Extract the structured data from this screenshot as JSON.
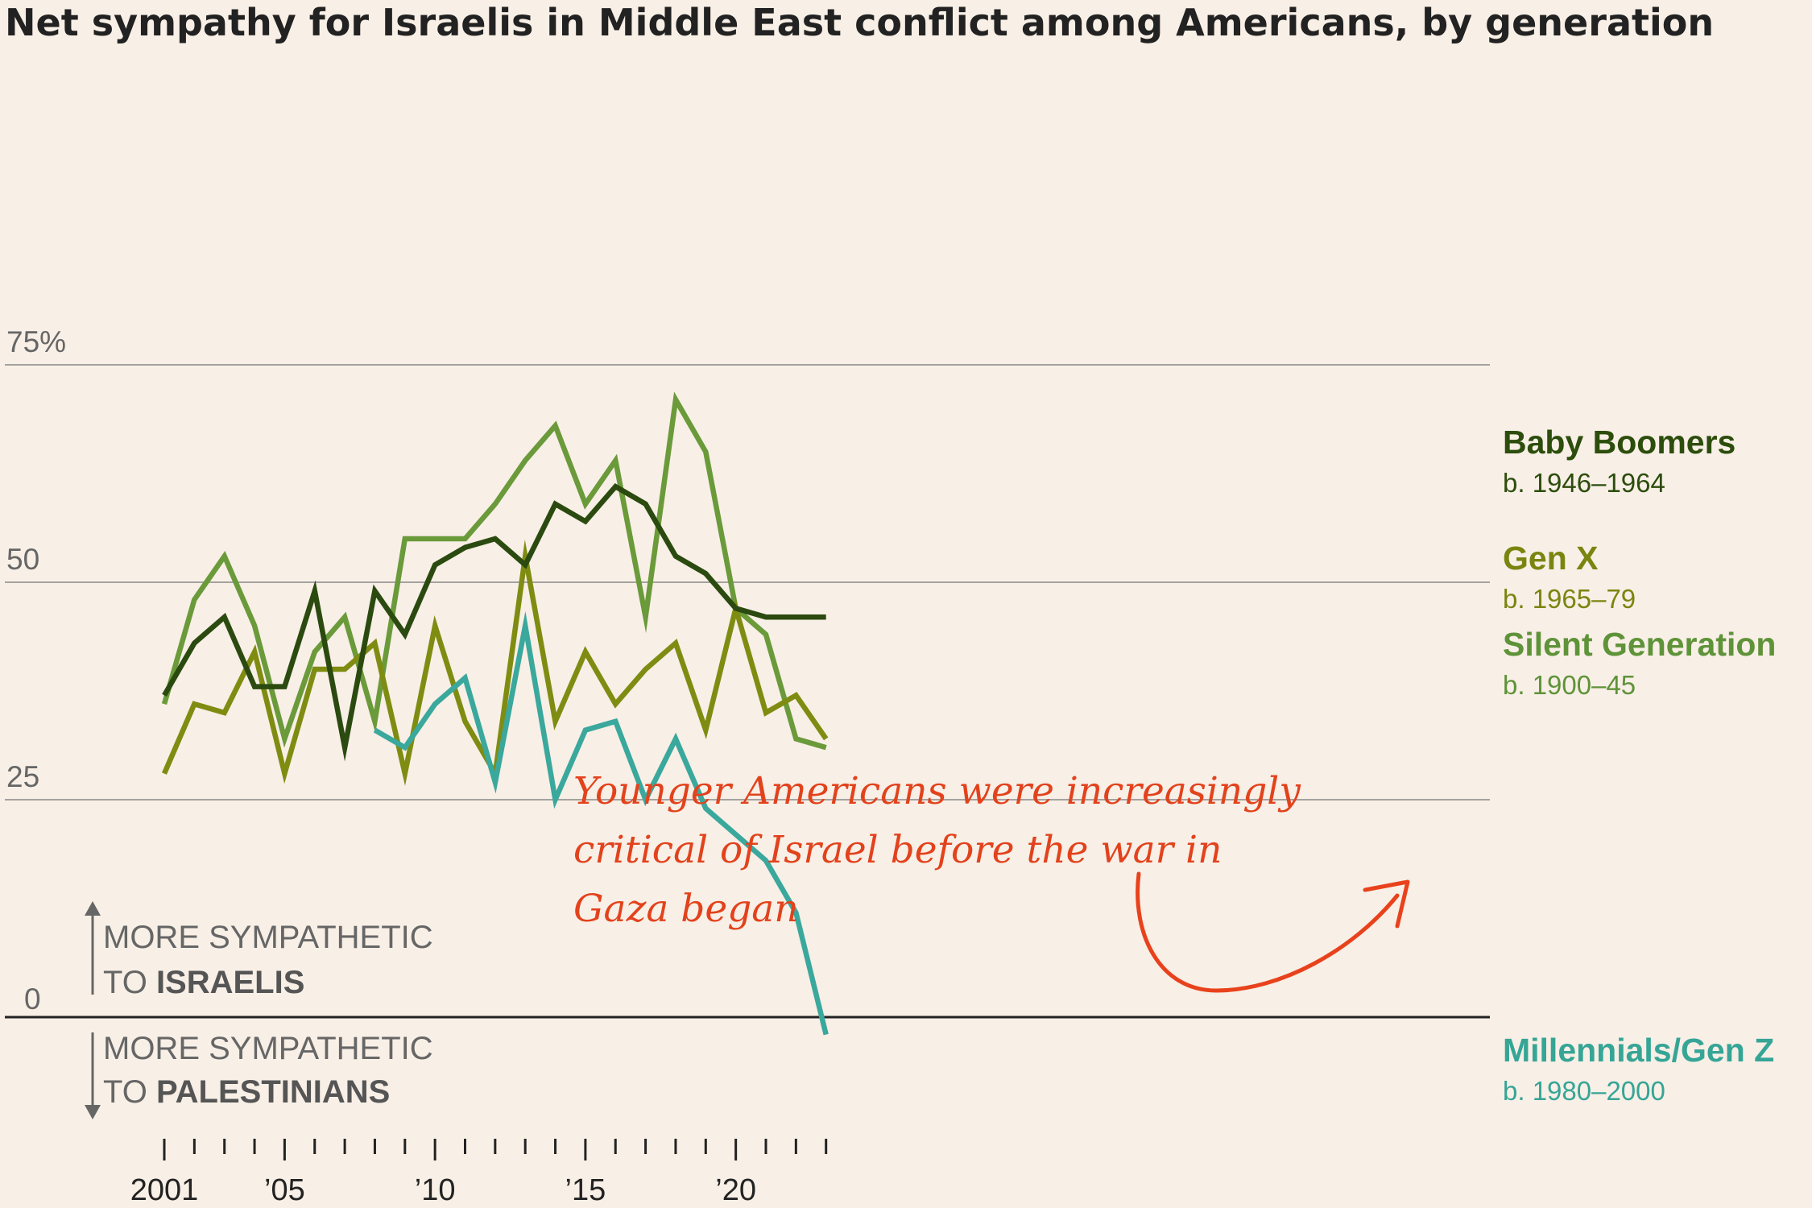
{
  "chart_data": {
    "type": "line",
    "title": "Net sympathy for Israelis in Middle East conflict among Americans, by generation",
    "ylim": [
      -3,
      75
    ],
    "xlim": [
      2001,
      2023
    ],
    "y_ticks": [
      {
        "value": 75,
        "label": "75%"
      },
      {
        "value": 50,
        "label": "50"
      },
      {
        "value": 25,
        "label": "25"
      },
      {
        "value": 0,
        "label": "0"
      }
    ],
    "x_ticks": [
      {
        "value": 2001,
        "label": "2001"
      },
      {
        "value": 2005,
        "label": "’05"
      },
      {
        "value": 2010,
        "label": "’10"
      },
      {
        "value": 2015,
        "label": "’15"
      },
      {
        "value": 2020,
        "label": "’20"
      }
    ],
    "series": [
      {
        "name": "Silent Generation",
        "birth": "b. 1900–45",
        "color": "#6a9a3a",
        "label_color": "#5f9339",
        "x": [
          2001,
          2002,
          2003,
          2004,
          2005,
          2006,
          2007,
          2008,
          2009,
          2010,
          2011,
          2012,
          2013,
          2014,
          2015,
          2016,
          2017,
          2018,
          2019,
          2020,
          2021,
          2022,
          2023
        ],
        "values": [
          36,
          48,
          53,
          45,
          32,
          42,
          46,
          34,
          55,
          55,
          55,
          59,
          64,
          68,
          59,
          64,
          46,
          71,
          65,
          47,
          44,
          32,
          31
        ]
      },
      {
        "name": "Gen X",
        "birth": "b. 1965–79",
        "color": "#7f8c12",
        "label_color": "#7a8510",
        "x": [
          2001,
          2002,
          2003,
          2004,
          2005,
          2006,
          2007,
          2008,
          2009,
          2010,
          2011,
          2012,
          2013,
          2014,
          2015,
          2016,
          2017,
          2018,
          2019,
          2020,
          2021,
          2022,
          2023
        ],
        "values": [
          28,
          36,
          35,
          42,
          28,
          40,
          40,
          43,
          28,
          45,
          34,
          28,
          53,
          34,
          42,
          36,
          40,
          43,
          33,
          47,
          35,
          37,
          32
        ]
      },
      {
        "name": "Millennials/Gen Z",
        "birth": "b. 1980–2000",
        "color": "#3aa89c",
        "label_color": "#35a596",
        "x": [
          2008,
          2009,
          2010,
          2011,
          2012,
          2013,
          2014,
          2015,
          2016,
          2017,
          2018,
          2019,
          2020,
          2021,
          2022,
          2023
        ],
        "values": [
          33,
          31,
          36,
          39,
          27,
          45,
          25,
          33,
          34,
          25,
          32,
          24,
          21,
          18,
          12,
          -2
        ]
      },
      {
        "name": "Baby Boomers",
        "birth": "b. 1946–1964",
        "color": "#2b4a10",
        "label_color": "#2c4d0c",
        "x": [
          2001,
          2002,
          2003,
          2004,
          2005,
          2006,
          2007,
          2008,
          2009,
          2010,
          2011,
          2012,
          2013,
          2014,
          2015,
          2016,
          2017,
          2018,
          2019,
          2020,
          2021,
          2022,
          2023
        ],
        "values": [
          37,
          43,
          46,
          38,
          38,
          49,
          31,
          49,
          44,
          52,
          54,
          55,
          52,
          59,
          57,
          61,
          59,
          53,
          51,
          47,
          46,
          46,
          46
        ]
      }
    ],
    "direction_labels": {
      "up": {
        "prefix": "MORE SYMPATHETIC",
        "to": "TO ",
        "strong": "ISRAELIS"
      },
      "down": {
        "prefix": "MORE SYMPATHETIC",
        "to": "TO ",
        "strong": "PALESTINIANS"
      }
    },
    "annotation": {
      "lines": [
        "Younger Americans were increasingly",
        "critical of Israel before the war in",
        "Gaza began"
      ],
      "color": "#e2421c"
    }
  }
}
